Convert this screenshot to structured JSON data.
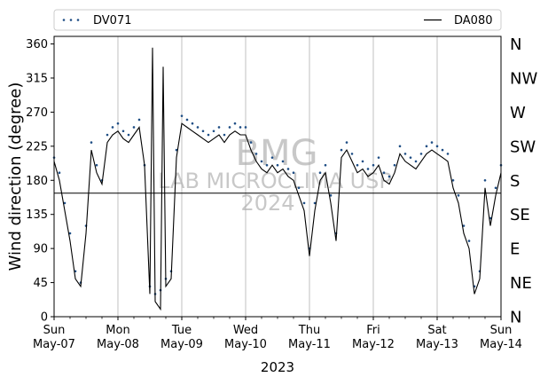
{
  "chart_data": {
    "type": "line",
    "ylabel": "Wind direction (degree)",
    "xlabel": "2023",
    "ylim": [
      0,
      370
    ],
    "xlim": [
      "2023-05-07",
      "2023-05-14"
    ],
    "yticks": [
      0,
      45,
      90,
      135,
      180,
      225,
      270,
      315,
      360
    ],
    "xticks": [
      {
        "date": "2023-05-07",
        "day": "Sun",
        "label": "May-07"
      },
      {
        "date": "2023-05-08",
        "day": "Mon",
        "label": "May-08"
      },
      {
        "date": "2023-05-09",
        "day": "Tue",
        "label": "May-09"
      },
      {
        "date": "2023-05-10",
        "day": "Wed",
        "label": "May-10"
      },
      {
        "date": "2023-05-11",
        "day": "Thu",
        "label": "May-11"
      },
      {
        "date": "2023-05-12",
        "day": "Fri",
        "label": "May-12"
      },
      {
        "date": "2023-05-13",
        "day": "Sat",
        "label": "May-13"
      },
      {
        "date": "2023-05-14",
        "day": "Sun",
        "label": "May-14"
      }
    ],
    "right_labels": [
      {
        "value": 360,
        "label": "N"
      },
      {
        "value": 315,
        "label": "NW"
      },
      {
        "value": 270,
        "label": "W"
      },
      {
        "value": 225,
        "label": "SW"
      },
      {
        "value": 180,
        "label": "S"
      },
      {
        "value": 135,
        "label": "SE"
      },
      {
        "value": 90,
        "label": "E"
      },
      {
        "value": 45,
        "label": "NE"
      },
      {
        "value": 0,
        "label": "N"
      }
    ],
    "reference_line": 163,
    "grid": "vertical",
    "legend_position": "top",
    "watermark": {
      "line1": "BMG",
      "line2": "LAB MICROCLIMA USP",
      "line3": "2024"
    },
    "series": [
      {
        "name": "DV071",
        "style": "dotted",
        "color": "#1f4e85",
        "points": [
          [
            "2023-05-07 00:00",
            210
          ],
          [
            "2023-05-07 02:00",
            190
          ],
          [
            "2023-05-07 04:00",
            150
          ],
          [
            "2023-05-07 06:00",
            110
          ],
          [
            "2023-05-07 08:00",
            60
          ],
          [
            "2023-05-07 10:00",
            45
          ],
          [
            "2023-05-07 12:00",
            120
          ],
          [
            "2023-05-07 14:00",
            230
          ],
          [
            "2023-05-07 16:00",
            200
          ],
          [
            "2023-05-07 18:00",
            180
          ],
          [
            "2023-05-07 20:00",
            240
          ],
          [
            "2023-05-07 22:00",
            250
          ],
          [
            "2023-05-08 00:00",
            255
          ],
          [
            "2023-05-08 02:00",
            245
          ],
          [
            "2023-05-08 04:00",
            240
          ],
          [
            "2023-05-08 06:00",
            250
          ],
          [
            "2023-05-08 08:00",
            260
          ],
          [
            "2023-05-08 10:00",
            200
          ],
          [
            "2023-05-08 12:00",
            40
          ],
          [
            "2023-05-08 14:00",
            30
          ],
          [
            "2023-05-08 16:00",
            35
          ],
          [
            "2023-05-08 18:00",
            50
          ],
          [
            "2023-05-08 20:00",
            60
          ],
          [
            "2023-05-08 22:00",
            220
          ],
          [
            "2023-05-09 00:00",
            265
          ],
          [
            "2023-05-09 02:00",
            260
          ],
          [
            "2023-05-09 04:00",
            255
          ],
          [
            "2023-05-09 06:00",
            250
          ],
          [
            "2023-05-09 08:00",
            245
          ],
          [
            "2023-05-09 10:00",
            240
          ],
          [
            "2023-05-09 12:00",
            245
          ],
          [
            "2023-05-09 14:00",
            250
          ],
          [
            "2023-05-09 16:00",
            240
          ],
          [
            "2023-05-09 18:00",
            250
          ],
          [
            "2023-05-09 20:00",
            255
          ],
          [
            "2023-05-09 22:00",
            250
          ],
          [
            "2023-05-10 00:00",
            250
          ],
          [
            "2023-05-10 02:00",
            230
          ],
          [
            "2023-05-10 04:00",
            215
          ],
          [
            "2023-05-10 06:00",
            205
          ],
          [
            "2023-05-10 08:00",
            200
          ],
          [
            "2023-05-10 10:00",
            210
          ],
          [
            "2023-05-10 12:00",
            200
          ],
          [
            "2023-05-10 14:00",
            205
          ],
          [
            "2023-05-10 16:00",
            195
          ],
          [
            "2023-05-10 18:00",
            190
          ],
          [
            "2023-05-10 20:00",
            170
          ],
          [
            "2023-05-10 22:00",
            150
          ],
          [
            "2023-05-11 00:00",
            90
          ],
          [
            "2023-05-11 02:00",
            150
          ],
          [
            "2023-05-11 04:00",
            190
          ],
          [
            "2023-05-11 06:00",
            200
          ],
          [
            "2023-05-11 08:00",
            160
          ],
          [
            "2023-05-11 10:00",
            110
          ],
          [
            "2023-05-11 12:00",
            220
          ],
          [
            "2023-05-11 14:00",
            230
          ],
          [
            "2023-05-11 16:00",
            215
          ],
          [
            "2023-05-11 18:00",
            200
          ],
          [
            "2023-05-11 20:00",
            205
          ],
          [
            "2023-05-11 22:00",
            195
          ],
          [
            "2023-05-12 00:00",
            200
          ],
          [
            "2023-05-12 02:00",
            210
          ],
          [
            "2023-05-12 04:00",
            190
          ],
          [
            "2023-05-12 06:00",
            185
          ],
          [
            "2023-05-12 08:00",
            200
          ],
          [
            "2023-05-12 10:00",
            225
          ],
          [
            "2023-05-12 12:00",
            215
          ],
          [
            "2023-05-12 14:00",
            210
          ],
          [
            "2023-05-12 16:00",
            205
          ],
          [
            "2023-05-12 18:00",
            215
          ],
          [
            "2023-05-12 20:00",
            225
          ],
          [
            "2023-05-12 22:00",
            230
          ],
          [
            "2023-05-13 00:00",
            225
          ],
          [
            "2023-05-13 02:00",
            220
          ],
          [
            "2023-05-13 04:00",
            215
          ],
          [
            "2023-05-13 06:00",
            180
          ],
          [
            "2023-05-13 08:00",
            160
          ],
          [
            "2023-05-13 10:00",
            120
          ],
          [
            "2023-05-13 12:00",
            100
          ],
          [
            "2023-05-13 14:00",
            40
          ],
          [
            "2023-05-13 16:00",
            60
          ],
          [
            "2023-05-13 18:00",
            180
          ],
          [
            "2023-05-13 20:00",
            130
          ],
          [
            "2023-05-13 22:00",
            170
          ],
          [
            "2023-05-14 00:00",
            200
          ]
        ]
      },
      {
        "name": "DA080",
        "style": "solid",
        "color": "#000000",
        "points": [
          [
            "2023-05-07 00:00",
            205
          ],
          [
            "2023-05-07 02:00",
            180
          ],
          [
            "2023-05-07 04:00",
            140
          ],
          [
            "2023-05-07 06:00",
            100
          ],
          [
            "2023-05-07 08:00",
            50
          ],
          [
            "2023-05-07 10:00",
            40
          ],
          [
            "2023-05-07 12:00",
            110
          ],
          [
            "2023-05-07 14:00",
            220
          ],
          [
            "2023-05-07 16:00",
            190
          ],
          [
            "2023-05-07 18:00",
            175
          ],
          [
            "2023-05-07 20:00",
            230
          ],
          [
            "2023-05-07 22:00",
            240
          ],
          [
            "2023-05-08 00:00",
            245
          ],
          [
            "2023-05-08 02:00",
            235
          ],
          [
            "2023-05-08 04:00",
            230
          ],
          [
            "2023-05-08 06:00",
            240
          ],
          [
            "2023-05-08 08:00",
            250
          ],
          [
            "2023-05-08 10:00",
            200
          ],
          [
            "2023-05-08 12:00",
            30
          ],
          [
            "2023-05-08 13:00",
            355
          ],
          [
            "2023-05-08 14:00",
            20
          ],
          [
            "2023-05-08 16:00",
            10
          ],
          [
            "2023-05-08 17:00",
            330
          ],
          [
            "2023-05-08 18:00",
            40
          ],
          [
            "2023-05-08 20:00",
            50
          ],
          [
            "2023-05-08 22:00",
            210
          ],
          [
            "2023-05-09 00:00",
            255
          ],
          [
            "2023-05-09 02:00",
            250
          ],
          [
            "2023-05-09 04:00",
            245
          ],
          [
            "2023-05-09 06:00",
            240
          ],
          [
            "2023-05-09 08:00",
            235
          ],
          [
            "2023-05-09 10:00",
            230
          ],
          [
            "2023-05-09 12:00",
            235
          ],
          [
            "2023-05-09 14:00",
            240
          ],
          [
            "2023-05-09 16:00",
            230
          ],
          [
            "2023-05-09 18:00",
            240
          ],
          [
            "2023-05-09 20:00",
            245
          ],
          [
            "2023-05-09 22:00",
            240
          ],
          [
            "2023-05-10 00:00",
            240
          ],
          [
            "2023-05-10 02:00",
            220
          ],
          [
            "2023-05-10 04:00",
            205
          ],
          [
            "2023-05-10 06:00",
            195
          ],
          [
            "2023-05-10 08:00",
            190
          ],
          [
            "2023-05-10 10:00",
            200
          ],
          [
            "2023-05-10 12:00",
            190
          ],
          [
            "2023-05-10 14:00",
            195
          ],
          [
            "2023-05-10 16:00",
            185
          ],
          [
            "2023-05-10 18:00",
            180
          ],
          [
            "2023-05-10 20:00",
            160
          ],
          [
            "2023-05-10 22:00",
            140
          ],
          [
            "2023-05-11 00:00",
            80
          ],
          [
            "2023-05-11 02:00",
            140
          ],
          [
            "2023-05-11 04:00",
            180
          ],
          [
            "2023-05-11 06:00",
            190
          ],
          [
            "2023-05-11 08:00",
            150
          ],
          [
            "2023-05-11 10:00",
            100
          ],
          [
            "2023-05-11 12:00",
            210
          ],
          [
            "2023-05-11 14:00",
            220
          ],
          [
            "2023-05-11 16:00",
            205
          ],
          [
            "2023-05-11 18:00",
            190
          ],
          [
            "2023-05-11 20:00",
            195
          ],
          [
            "2023-05-11 22:00",
            185
          ],
          [
            "2023-05-12 00:00",
            190
          ],
          [
            "2023-05-12 02:00",
            200
          ],
          [
            "2023-05-12 04:00",
            180
          ],
          [
            "2023-05-12 06:00",
            175
          ],
          [
            "2023-05-12 08:00",
            190
          ],
          [
            "2023-05-12 10:00",
            215
          ],
          [
            "2023-05-12 12:00",
            205
          ],
          [
            "2023-05-12 14:00",
            200
          ],
          [
            "2023-05-12 16:00",
            195
          ],
          [
            "2023-05-12 18:00",
            205
          ],
          [
            "2023-05-12 20:00",
            215
          ],
          [
            "2023-05-12 22:00",
            220
          ],
          [
            "2023-05-13 00:00",
            215
          ],
          [
            "2023-05-13 02:00",
            210
          ],
          [
            "2023-05-13 04:00",
            205
          ],
          [
            "2023-05-13 06:00",
            170
          ],
          [
            "2023-05-13 08:00",
            150
          ],
          [
            "2023-05-13 10:00",
            110
          ],
          [
            "2023-05-13 12:00",
            90
          ],
          [
            "2023-05-13 14:00",
            30
          ],
          [
            "2023-05-13 16:00",
            50
          ],
          [
            "2023-05-13 18:00",
            170
          ],
          [
            "2023-05-13 20:00",
            120
          ],
          [
            "2023-05-13 22:00",
            160
          ],
          [
            "2023-05-14 00:00",
            190
          ]
        ]
      }
    ]
  }
}
